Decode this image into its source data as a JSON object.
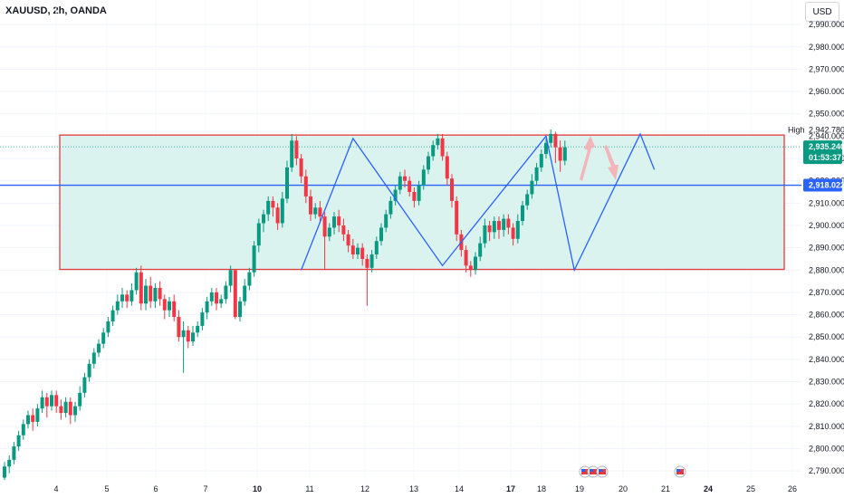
{
  "header": {
    "symbol_title": "XAUUSD, 2h, OANDA",
    "currency": "USD"
  },
  "colors": {
    "up": "#089981",
    "down": "#f23645",
    "range_fill": "#daf3ee",
    "range_border": "#e53940",
    "pattern_line": "#2962ff",
    "level_line": "#2962ff",
    "current_price_line": "#089981",
    "arrow_up": "#f7a8b0",
    "arrow_down": "#f7a8b0"
  },
  "price_tags": {
    "high_label": "High",
    "high_value": "2,942.780",
    "current_price": "2,935.240",
    "countdown": "01:53:37",
    "level_value": "2,918.022"
  },
  "event_icons": [
    "us-flag-icon",
    "us-flag-icon",
    "us-flag-icon",
    "us-flag-icon"
  ],
  "chart_data": {
    "type": "candlestick",
    "title": "XAUUSD, 2h, OANDA",
    "y_ticks": [
      "2,790.000",
      "2,800.000",
      "2,810.000",
      "2,820.000",
      "2,830.000",
      "2,840.000",
      "2,850.000",
      "2,860.000",
      "2,870.000",
      "2,880.000",
      "2,890.000",
      "2,900.000",
      "2,910.000",
      "2,920.000",
      "2,930.000",
      "2,940.000",
      "2,950.000",
      "2,960.000",
      "2,970.000",
      "2,980.000",
      "2,990.000"
    ],
    "x_ticks": [
      {
        "label": "4",
        "bold": false
      },
      {
        "label": "5",
        "bold": false
      },
      {
        "label": "6",
        "bold": false
      },
      {
        "label": "7",
        "bold": false
      },
      {
        "label": "10",
        "bold": true
      },
      {
        "label": "11",
        "bold": false
      },
      {
        "label": "12",
        "bold": false
      },
      {
        "label": "13",
        "bold": false
      },
      {
        "label": "14",
        "bold": false
      },
      {
        "label": "17",
        "bold": true
      },
      {
        "label": "18",
        "bold": false
      },
      {
        "label": "19",
        "bold": false
      },
      {
        "label": "20",
        "bold": false
      },
      {
        "label": "21",
        "bold": false
      },
      {
        "label": "24",
        "bold": true
      },
      {
        "label": "25",
        "bold": false
      },
      {
        "label": "26",
        "bold": false
      }
    ],
    "ylim": [
      2786,
      3001
    ],
    "range_box": {
      "top": 2940.5,
      "bottom": 2880.3
    },
    "horizontal_level": 2918.022,
    "current_price": 2935.24,
    "high": 2942.78,
    "candles": [
      [
        2787,
        2792,
        2786,
        2794
      ],
      [
        2792,
        2795,
        2789,
        2797
      ],
      [
        2795,
        2801,
        2793,
        2803
      ],
      [
        2801,
        2806,
        2799,
        2808
      ],
      [
        2806,
        2811,
        2804,
        2813
      ],
      [
        2811,
        2815,
        2809,
        2817
      ],
      [
        2815,
        2812,
        2808,
        2818
      ],
      [
        2812,
        2818,
        2810,
        2820
      ],
      [
        2818,
        2823,
        2816,
        2826
      ],
      [
        2823,
        2819,
        2814,
        2825
      ],
      [
        2819,
        2824,
        2817,
        2826
      ],
      [
        2824,
        2819,
        2816,
        2826
      ],
      [
        2819,
        2816,
        2813,
        2822
      ],
      [
        2816,
        2821,
        2814,
        2823
      ],
      [
        2821,
        2815,
        2811,
        2823
      ],
      [
        2815,
        2819,
        2812,
        2821
      ],
      [
        2819,
        2825,
        2817,
        2828
      ],
      [
        2825,
        2832,
        2823,
        2834
      ],
      [
        2832,
        2838,
        2830,
        2840
      ],
      [
        2838,
        2843,
        2836,
        2845
      ],
      [
        2843,
        2847,
        2841,
        2849
      ],
      [
        2847,
        2852,
        2845,
        2854
      ],
      [
        2852,
        2857,
        2850,
        2859
      ],
      [
        2857,
        2862,
        2855,
        2864
      ],
      [
        2862,
        2866,
        2860,
        2869
      ],
      [
        2866,
        2869,
        2863,
        2872
      ],
      [
        2869,
        2866,
        2863,
        2871
      ],
      [
        2866,
        2871,
        2864,
        2874
      ],
      [
        2871,
        2879,
        2869,
        2881
      ],
      [
        2879,
        2865,
        2862,
        2882
      ],
      [
        2865,
        2873,
        2862,
        2876
      ],
      [
        2873,
        2866,
        2863,
        2877
      ],
      [
        2866,
        2872,
        2863,
        2874
      ],
      [
        2872,
        2867,
        2864,
        2875
      ],
      [
        2867,
        2862,
        2858,
        2869
      ],
      [
        2862,
        2866,
        2859,
        2868
      ],
      [
        2866,
        2859,
        2857,
        2869
      ],
      [
        2859,
        2850,
        2848,
        2862
      ],
      [
        2850,
        2853,
        2834,
        2857
      ],
      [
        2853,
        2848,
        2845,
        2855
      ],
      [
        2848,
        2852,
        2846,
        2855
      ],
      [
        2852,
        2855,
        2850,
        2857
      ],
      [
        2855,
        2861,
        2853,
        2863
      ],
      [
        2861,
        2866,
        2858,
        2868
      ],
      [
        2866,
        2870,
        2864,
        2872
      ],
      [
        2870,
        2865,
        2862,
        2872
      ],
      [
        2865,
        2867,
        2863,
        2869
      ],
      [
        2867,
        2873,
        2865,
        2875
      ],
      [
        2873,
        2880,
        2870,
        2882
      ],
      [
        2880,
        2859,
        2858,
        2880
      ],
      [
        2859,
        2866,
        2857,
        2868
      ],
      [
        2866,
        2873,
        2864,
        2876
      ],
      [
        2873,
        2879,
        2871,
        2881
      ],
      [
        2879,
        2891,
        2877,
        2893
      ],
      [
        2891,
        2901,
        2888,
        2903
      ],
      [
        2901,
        2905,
        2897,
        2907
      ],
      [
        2905,
        2911,
        2902,
        2913
      ],
      [
        2911,
        2908,
        2904,
        2913
      ],
      [
        2908,
        2901,
        2898,
        2910
      ],
      [
        2901,
        2912,
        2899,
        2915
      ],
      [
        2912,
        2926,
        2910,
        2929
      ],
      [
        2926,
        2938,
        2924,
        2941
      ],
      [
        2938,
        2930,
        2927,
        2940
      ],
      [
        2930,
        2922,
        2919,
        2932
      ],
      [
        2922,
        2913,
        2910,
        2925
      ],
      [
        2913,
        2905,
        2902,
        2916
      ],
      [
        2905,
        2908,
        2903,
        2910
      ],
      [
        2908,
        2904,
        2901,
        2911
      ],
      [
        2904,
        2895,
        2880,
        2906
      ],
      [
        2895,
        2899,
        2893,
        2901
      ],
      [
        2899,
        2904,
        2896,
        2906
      ],
      [
        2904,
        2900,
        2897,
        2907
      ],
      [
        2900,
        2896,
        2893,
        2903
      ],
      [
        2896,
        2891,
        2888,
        2898
      ],
      [
        2891,
        2887,
        2885,
        2894
      ],
      [
        2887,
        2890,
        2885,
        2892
      ],
      [
        2890,
        2885,
        2882,
        2892
      ],
      [
        2885,
        2881,
        2864,
        2887
      ],
      [
        2881,
        2887,
        2879,
        2889
      ],
      [
        2887,
        2893,
        2885,
        2895
      ],
      [
        2893,
        2899,
        2891,
        2901
      ],
      [
        2899,
        2905,
        2897,
        2907
      ],
      [
        2905,
        2911,
        2903,
        2913
      ],
      [
        2911,
        2916,
        2909,
        2918
      ],
      [
        2916,
        2922,
        2914,
        2924
      ],
      [
        2922,
        2920,
        2917,
        2925
      ],
      [
        2920,
        2915,
        2913,
        2922
      ],
      [
        2915,
        2911,
        2908,
        2917
      ],
      [
        2911,
        2918,
        2909,
        2920
      ],
      [
        2918,
        2925,
        2916,
        2927
      ],
      [
        2925,
        2931,
        2923,
        2933
      ],
      [
        2931,
        2936,
        2929,
        2938
      ],
      [
        2936,
        2939,
        2934,
        2941
      ],
      [
        2939,
        2931,
        2929,
        2941
      ],
      [
        2931,
        2921,
        2918,
        2933
      ],
      [
        2921,
        2911,
        2908,
        2923
      ],
      [
        2911,
        2896,
        2893,
        2913
      ],
      [
        2896,
        2889,
        2886,
        2898
      ],
      [
        2889,
        2882,
        2879,
        2891
      ],
      [
        2882,
        2880,
        2877,
        2884
      ],
      [
        2880,
        2886,
        2878,
        2888
      ],
      [
        2886,
        2892,
        2884,
        2895
      ],
      [
        2892,
        2900,
        2890,
        2903
      ],
      [
        2900,
        2897,
        2893,
        2902
      ],
      [
        2897,
        2902,
        2894,
        2904
      ],
      [
        2902,
        2898,
        2894,
        2904
      ],
      [
        2898,
        2903,
        2895,
        2905
      ],
      [
        2903,
        2899,
        2896,
        2905
      ],
      [
        2899,
        2894,
        2891,
        2901
      ],
      [
        2894,
        2902,
        2892,
        2905
      ],
      [
        2902,
        2909,
        2900,
        2911
      ],
      [
        2909,
        2914,
        2907,
        2916
      ],
      [
        2914,
        2920,
        2912,
        2923
      ],
      [
        2920,
        2926,
        2918,
        2928
      ],
      [
        2926,
        2932,
        2924,
        2934
      ],
      [
        2932,
        2937,
        2930,
        2939
      ],
      [
        2937,
        2941,
        2935,
        2943
      ],
      [
        2941,
        2935,
        2928,
        2942
      ],
      [
        2935,
        2929,
        2924,
        2938
      ],
      [
        2929,
        2935,
        2927,
        2938
      ]
    ],
    "pattern_points": [
      [
        63,
        2880
      ],
      [
        74,
        2939
      ],
      [
        93,
        2882
      ],
      [
        115,
        2940
      ],
      [
        121,
        2880
      ],
      [
        135,
        2941
      ],
      [
        138,
        2925
      ]
    ]
  }
}
